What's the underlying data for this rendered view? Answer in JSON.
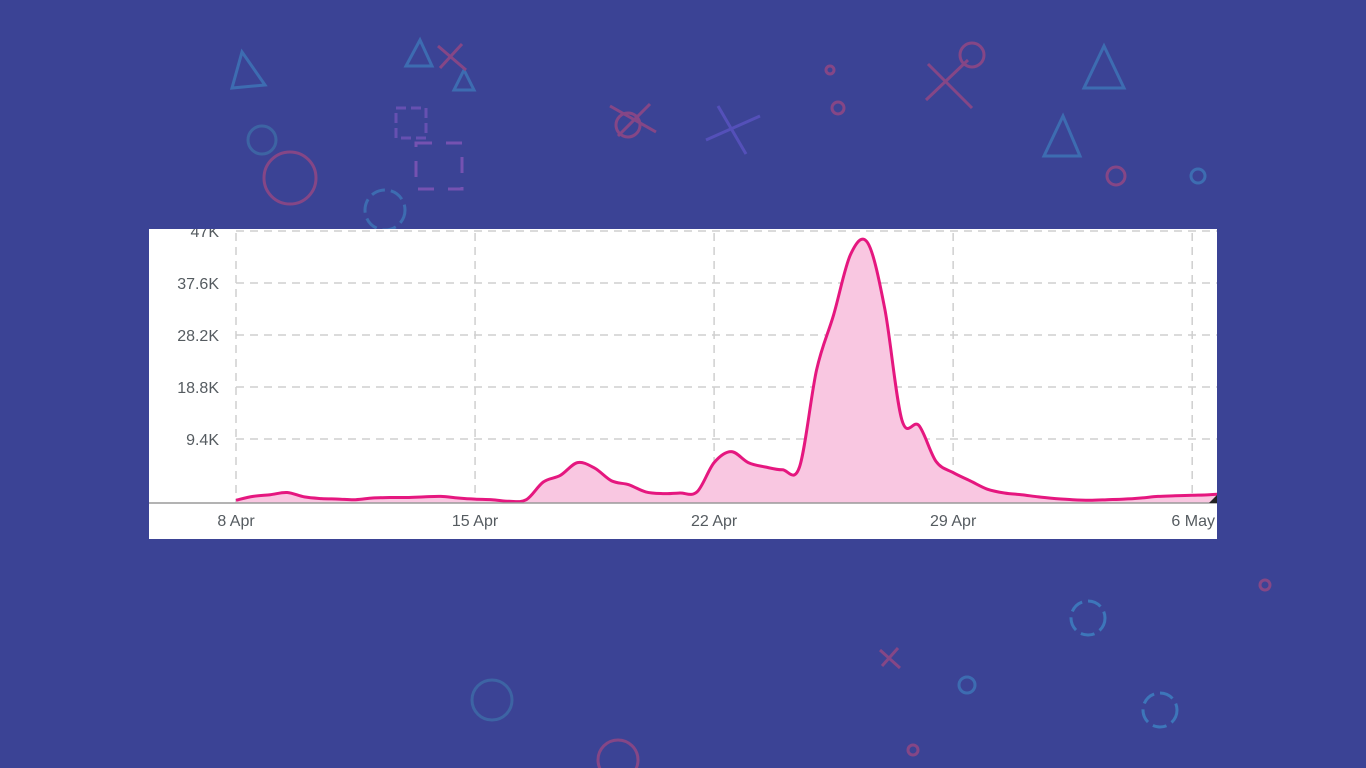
{
  "colors": {
    "background": "#3b4395",
    "series_line": "#e5177f",
    "series_fill": "#f9c7e1",
    "grid": "#cfcfcf",
    "axis": "#9a9a9a",
    "tick_text": "#555b60"
  },
  "chart_data": {
    "type": "area",
    "title": "",
    "xlabel": "",
    "ylabel": "",
    "grid": true,
    "legend": "none",
    "y_ticks": [
      "9.4K",
      "18.8K",
      "28.2K",
      "37.6K",
      "47K"
    ],
    "y_tick_values": [
      9400,
      18800,
      28200,
      37600,
      47000
    ],
    "x_ticks": [
      "8 Apr",
      "15 Apr",
      "22 Apr",
      "29 Apr",
      "6 May"
    ],
    "x_tick_dates": [
      "2024-04-08",
      "2024-04-15",
      "2024-04-22",
      "2024-04-29",
      "2024-05-06"
    ],
    "xlim": [
      "2024-04-08",
      "2024-05-07"
    ],
    "ylim": [
      0,
      50500
    ],
    "series": [
      {
        "x": [
          "2024-04-08",
          "2024-04-08T12:00",
          "2024-04-09",
          "2024-04-09T12:00",
          "2024-04-10",
          "2024-04-10T12:00",
          "2024-04-11",
          "2024-04-11T12:00",
          "2024-04-12",
          "2024-04-12T12:00",
          "2024-04-13",
          "2024-04-13T12:00",
          "2024-04-14",
          "2024-04-14T12:00",
          "2024-04-15",
          "2024-04-15T12:00",
          "2024-04-16",
          "2024-04-16T12:00",
          "2024-04-17",
          "2024-04-17T12:00",
          "2024-04-18",
          "2024-04-18T12:00",
          "2024-04-19",
          "2024-04-19T12:00",
          "2024-04-20",
          "2024-04-20T12:00",
          "2024-04-21",
          "2024-04-21T12:00",
          "2024-04-22",
          "2024-04-22T12:00",
          "2024-04-23",
          "2024-04-23T12:00",
          "2024-04-24",
          "2024-04-24T12:00",
          "2024-04-25",
          "2024-04-25T12:00",
          "2024-04-26",
          "2024-04-26T12:00",
          "2024-04-27",
          "2024-04-27T12:00",
          "2024-04-28",
          "2024-04-28T12:00",
          "2024-04-29",
          "2024-04-29T12:00",
          "2024-04-30",
          "2024-04-30T12:00",
          "2024-05-01",
          "2024-05-01T12:00",
          "2024-05-02",
          "2024-05-02T12:00",
          "2024-05-03",
          "2024-05-03T12:00",
          "2024-05-04",
          "2024-05-04T12:00",
          "2024-05-05",
          "2024-05-05T12:00",
          "2024-05-06",
          "2024-05-06T12:00",
          "2024-05-07"
        ],
        "values": [
          500,
          1200,
          1500,
          1900,
          1100,
          800,
          700,
          600,
          900,
          1000,
          1000,
          1100,
          1200,
          900,
          700,
          600,
          300,
          600,
          3800,
          5000,
          7300,
          6300,
          4000,
          3300,
          2000,
          1700,
          1800,
          2000,
          7300,
          9300,
          7300,
          6500,
          6000,
          6500,
          24000,
          34000,
          45000,
          47000,
          35000,
          15000,
          14000,
          7500,
          5500,
          4000,
          2500,
          1800,
          1500,
          1100,
          800,
          600,
          500,
          600,
          700,
          900,
          1200,
          1300,
          1400,
          1500,
          1700
        ]
      }
    ]
  }
}
